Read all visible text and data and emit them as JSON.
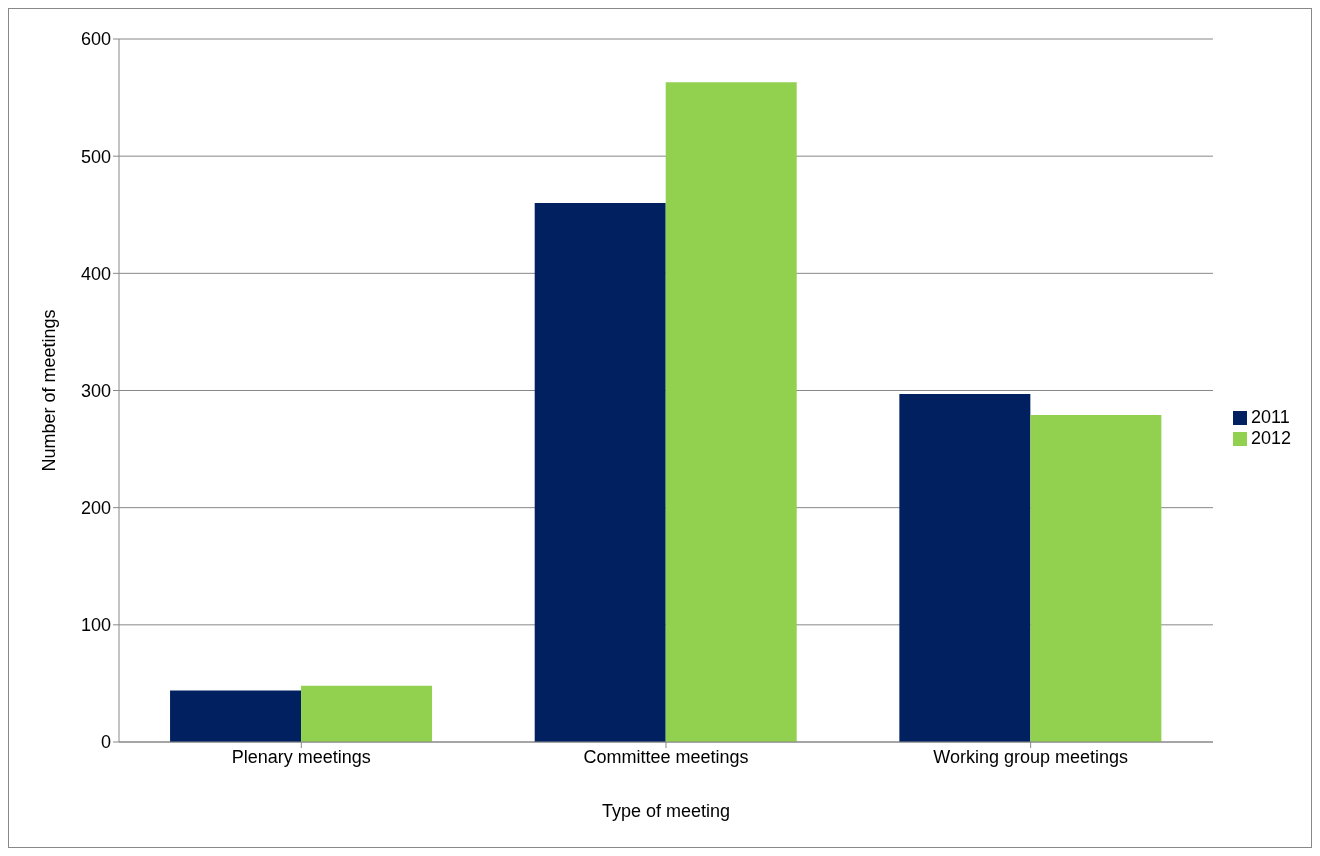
{
  "chart_data": {
    "type": "bar",
    "xlabel": "Type of meeting",
    "ylabel": "Number of meetings",
    "categories": [
      "Plenary meetings",
      "Committee meetings",
      "Working group meetings"
    ],
    "series": [
      {
        "name": "2011",
        "color": "#002060",
        "values": [
          44,
          460,
          297
        ]
      },
      {
        "name": "2012",
        "color": "#92d050",
        "values": [
          48,
          563,
          279
        ]
      }
    ],
    "ylim": [
      0,
      600
    ],
    "yticks": [
      0,
      100,
      200,
      300,
      400,
      500,
      600
    ],
    "grid": "y",
    "legend": "right"
  }
}
